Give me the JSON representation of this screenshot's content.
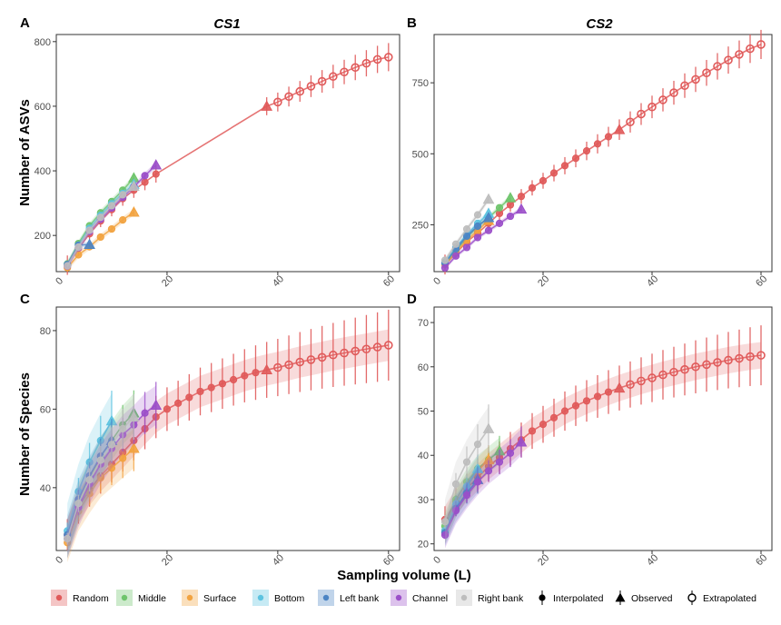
{
  "chart_data": {
    "type": "line",
    "x_axis_label": "Sampling volume (L)",
    "legend": {
      "items": [
        {
          "key": "random",
          "label": "Random",
          "color": "#e05a5a"
        },
        {
          "key": "middle",
          "label": "Middle",
          "color": "#6ec46b"
        },
        {
          "key": "surface",
          "label": "Surface",
          "color": "#f2a340"
        },
        {
          "key": "bottom",
          "label": "Bottom",
          "color": "#5cc3e0"
        },
        {
          "key": "leftbank",
          "label": "Left bank",
          "color": "#4b84c4"
        },
        {
          "key": "channel",
          "label": "Channel",
          "color": "#9b4fc9"
        },
        {
          "key": "rightbank",
          "label": "Right bank",
          "color": "#bdbdbd"
        }
      ],
      "methods": [
        {
          "key": "interpolated",
          "label": "Interpolated"
        },
        {
          "key": "observed",
          "label": "Observed"
        },
        {
          "key": "extrapolated",
          "label": "Extrapolated"
        }
      ]
    },
    "panels": [
      {
        "letter": "A",
        "title": "CS1",
        "ylabel": "Number of ASVs",
        "xlim": [
          0,
          62
        ],
        "ylim": [
          88,
          822
        ],
        "xticks": [
          20,
          40,
          60
        ],
        "yticks": [
          200,
          400,
          600,
          800
        ],
        "series": [
          {
            "key": "random",
            "interp_x": [
              2,
              4,
              6,
              8,
              10,
              12,
              14,
              16,
              18
            ],
            "interp_y": [
              108,
              160,
              205,
              245,
              280,
              314,
              340,
              365,
              390
            ],
            "obs_x": 38,
            "obs_y": 600,
            "extrap_x": [
              40,
              42,
              44,
              46,
              48,
              50,
              52,
              54,
              56,
              58,
              60
            ],
            "extrap_y": [
              613,
              630,
              646,
              662,
              677,
              692,
              706,
              720,
              733,
              745,
              752
            ],
            "err": 30,
            "ribbon": false,
            "shape_x": 18,
            "shape_y": 390,
            "full_x": [
              2,
              4,
              6,
              8,
              10,
              12,
              14,
              16,
              18,
              20,
              22,
              24,
              26,
              28,
              30,
              32,
              34,
              36
            ],
            "full_y": [
              108,
              160,
              205,
              245,
              280,
              314,
              340,
              365,
              390,
              412,
              436,
              460,
              483,
              505,
              525,
              545,
              565,
              583
            ],
            "full_err": 22
          },
          {
            "key": "middle",
            "interp_x": [
              2,
              4,
              6,
              8,
              10,
              12
            ],
            "interp_y": [
              112,
              175,
              230,
              270,
              305,
              340
            ],
            "obs_x": 14,
            "obs_y": 378,
            "err": 10,
            "ribbon": true
          },
          {
            "key": "surface",
            "interp_x": [
              2,
              4,
              6,
              8,
              10,
              12
            ],
            "interp_y": [
              100,
              140,
              165,
              195,
              220,
              248
            ],
            "obs_x": 14,
            "obs_y": 272,
            "err": 10,
            "ribbon": true
          },
          {
            "key": "bottom",
            "interp_x": [
              2,
              4,
              6,
              8,
              10,
              12
            ],
            "interp_y": [
              108,
              168,
              222,
              262,
              298,
              330
            ],
            "obs_x": 14,
            "obs_y": 358,
            "err": 10,
            "ribbon": true
          },
          {
            "key": "leftbank",
            "interp_x": [
              2,
              4
            ],
            "interp_y": [
              110,
              170
            ],
            "obs_x": 6,
            "obs_y": 172,
            "err": 8,
            "ribbon": true
          },
          {
            "key": "channel",
            "interp_x": [
              2,
              4,
              6,
              8,
              10,
              12,
              14,
              16
            ],
            "interp_y": [
              105,
              162,
              212,
              250,
              285,
              318,
              350,
              385
            ],
            "obs_x": 18,
            "obs_y": 418,
            "err": 10,
            "ribbon": true
          },
          {
            "key": "rightbank",
            "interp_x": [
              2,
              4,
              6,
              8,
              10,
              12
            ],
            "interp_y": [
              106,
              164,
              216,
              256,
              292,
              326
            ],
            "obs_x": 14,
            "obs_y": 352,
            "err": 10,
            "ribbon": true
          }
        ]
      },
      {
        "letter": "B",
        "title": "CS2",
        "ylabel": "",
        "xlim": [
          0,
          62
        ],
        "ylim": [
          85,
          920
        ],
        "xticks": [
          20,
          40,
          60
        ],
        "yticks": [
          250,
          500,
          750
        ],
        "series": [
          {
            "key": "random",
            "interp_x": [
              2,
              4,
              6,
              8,
              10,
              12,
              14,
              16,
              18,
              20,
              22,
              24,
              26,
              28,
              30,
              32
            ],
            "interp_y": [
              110,
              150,
              190,
              220,
              255,
              290,
              320,
              350,
              380,
              405,
              432,
              458,
              484,
              510,
              535,
              560
            ],
            "obs_x": 34,
            "obs_y": 585,
            "extrap_x": [
              36,
              38,
              40,
              42,
              44,
              46,
              48,
              50,
              52,
              54,
              56,
              58,
              60
            ],
            "extrap_y": [
              612,
              640,
              665,
              690,
              715,
              740,
              762,
              785,
              808,
              830,
              850,
              870,
              885
            ],
            "err": 35,
            "ribbon": false
          },
          {
            "key": "middle",
            "interp_x": [
              2,
              4,
              6,
              8,
              10,
              12
            ],
            "interp_y": [
              112,
              160,
              205,
              245,
              275,
              310
            ],
            "obs_x": 14,
            "obs_y": 345,
            "err": 10,
            "ribbon": true
          },
          {
            "key": "surface",
            "interp_x": [
              2,
              4,
              6,
              8
            ],
            "interp_y": [
              110,
              155,
              195,
              230
            ],
            "obs_x": 10,
            "obs_y": 265,
            "err": 10,
            "ribbon": true
          },
          {
            "key": "bottom",
            "interp_x": [
              2,
              4,
              6,
              8
            ],
            "interp_y": [
              118,
              170,
              215,
              255
            ],
            "obs_x": 10,
            "obs_y": 290,
            "err": 10,
            "ribbon": true
          },
          {
            "key": "leftbank",
            "interp_x": [
              2,
              4,
              6,
              8
            ],
            "interp_y": [
              115,
              165,
              210,
              245
            ],
            "obs_x": 10,
            "obs_y": 275,
            "err": 10,
            "ribbon": true
          },
          {
            "key": "channel",
            "interp_x": [
              2,
              4,
              6,
              8,
              10,
              12,
              14
            ],
            "interp_y": [
              98,
              140,
              170,
              205,
              230,
              255,
              280
            ],
            "obs_x": 16,
            "obs_y": 305,
            "err": 8,
            "ribbon": true
          },
          {
            "key": "rightbank",
            "interp_x": [
              2,
              4,
              6,
              8
            ],
            "interp_y": [
              125,
              182,
              235,
              285
            ],
            "obs_x": 10,
            "obs_y": 340,
            "err": 10,
            "ribbon": true
          }
        ]
      },
      {
        "letter": "C",
        "title": "",
        "ylabel": "Number of Species",
        "xlim": [
          0,
          62
        ],
        "ylim": [
          24,
          86
        ],
        "xticks": [
          20,
          40,
          60
        ],
        "yticks": [
          40,
          60,
          80
        ],
        "series": [
          {
            "key": "random",
            "interp_x": [
              2,
              4,
              6,
              8,
              10,
              12,
              14,
              16,
              18,
              20,
              22,
              24,
              26,
              28,
              30,
              32,
              34,
              36
            ],
            "interp_y": [
              28,
              35,
              39.5,
              43,
              46,
              49,
              52,
              55,
              58,
              60,
              61.5,
              63,
              64.5,
              65.5,
              66.5,
              67.5,
              68.5,
              69.3
            ],
            "obs_x": 38,
            "obs_y": 70,
            "extrap_x": [
              40,
              42,
              44,
              46,
              48,
              50,
              52,
              54,
              56,
              58,
              60
            ],
            "extrap_y": [
              70.6,
              71.3,
              72,
              72.6,
              73.2,
              73.8,
              74.3,
              74.8,
              75.3,
              75.8,
              76.3
            ],
            "err": 4,
            "errgrow": true,
            "ribbon": true
          },
          {
            "key": "middle",
            "interp_x": [
              2,
              4,
              6,
              8,
              10,
              12
            ],
            "interp_y": [
              27,
              36,
              42,
              48,
              52,
              56
            ],
            "obs_x": 14,
            "obs_y": 59,
            "err": 5,
            "ribbon": true
          },
          {
            "key": "surface",
            "interp_x": [
              2,
              4,
              6,
              8,
              10,
              12
            ],
            "interp_y": [
              26,
              34,
              38.5,
              42.5,
              45,
              47.5
            ],
            "obs_x": 14,
            "obs_y": 50,
            "err": 5,
            "ribbon": true
          },
          {
            "key": "bottom",
            "interp_x": [
              2,
              4,
              6,
              8
            ],
            "interp_y": [
              29,
              39,
              46.5,
              52
            ],
            "obs_x": 10,
            "obs_y": 57,
            "err": 7,
            "ribbon": true
          },
          {
            "key": "leftbank",
            "interp_x": [
              2,
              4,
              6,
              8
            ],
            "interp_y": [
              28,
              37,
              43,
              48
            ],
            "obs_x": 10,
            "obs_y": 52,
            "err": 5,
            "ribbon": true
          },
          {
            "key": "channel",
            "interp_x": [
              2,
              4,
              6,
              8,
              10,
              12,
              14,
              16
            ],
            "interp_y": [
              27,
              35,
              41,
              46,
              50,
              53.5,
              56,
              59
            ],
            "obs_x": 18,
            "obs_y": 61,
            "err": 5,
            "ribbon": true
          },
          {
            "key": "rightbank",
            "interp_x": [
              2,
              4,
              6,
              8,
              10,
              12
            ],
            "interp_y": [
              27,
              36,
              42,
              47,
              51,
              55
            ],
            "obs_x": 14,
            "obs_y": 58,
            "err": 5,
            "ribbon": true
          }
        ]
      },
      {
        "letter": "D",
        "title": "",
        "ylabel": "",
        "xlim": [
          0,
          62
        ],
        "ylim": [
          18.5,
          73.5
        ],
        "xticks": [
          20,
          40,
          60
        ],
        "yticks": [
          20,
          30,
          40,
          50,
          60,
          70
        ],
        "series": [
          {
            "key": "random",
            "interp_x": [
              2,
              4,
              6,
              8,
              10,
              12,
              14,
              16,
              18,
              20,
              22,
              24,
              26,
              28,
              30,
              32
            ],
            "interp_y": [
              25.5,
              29.5,
              32.5,
              35,
              37.5,
              39.5,
              41.5,
              43.5,
              45.5,
              47,
              48.5,
              50,
              51.2,
              52.3,
              53.3,
              54.3
            ],
            "obs_x": 34,
            "obs_y": 55.2,
            "extrap_x": [
              36,
              38,
              40,
              42,
              44,
              46,
              48,
              50,
              52,
              54,
              56,
              58,
              60
            ],
            "extrap_y": [
              56,
              56.8,
              57.5,
              58.2,
              58.8,
              59.4,
              60,
              60.5,
              61,
              61.5,
              61.9,
              62.3,
              62.6
            ],
            "err": 3,
            "errgrow": true,
            "ribbon": true
          },
          {
            "key": "middle",
            "interp_x": [
              2,
              4,
              6,
              8,
              10
            ],
            "interp_y": [
              24,
              30,
              34,
              37,
              39
            ],
            "obs_x": 12,
            "obs_y": 41,
            "err": 3,
            "ribbon": true
          },
          {
            "key": "surface",
            "interp_x": [
              2,
              4,
              6,
              8
            ],
            "interp_y": [
              23,
              29,
              33,
              36.5
            ],
            "obs_x": 10,
            "obs_y": 39,
            "err": 3,
            "ribbon": true
          },
          {
            "key": "bottom",
            "interp_x": [
              2,
              4,
              6
            ],
            "interp_y": [
              23,
              29,
              33
            ],
            "obs_x": 8,
            "obs_y": 37,
            "err": 3,
            "ribbon": true
          },
          {
            "key": "leftbank",
            "interp_x": [
              2,
              4,
              6
            ],
            "interp_y": [
              22.5,
              28,
              31.5
            ],
            "obs_x": 8,
            "obs_y": 34.5,
            "err": 3,
            "ribbon": true
          },
          {
            "key": "channel",
            "interp_x": [
              2,
              4,
              6,
              8,
              10,
              12,
              14
            ],
            "interp_y": [
              22,
              27.5,
              31,
              34,
              36.5,
              38.5,
              40.5
            ],
            "obs_x": 16,
            "obs_y": 43,
            "err": 3,
            "ribbon": true
          },
          {
            "key": "rightbank",
            "interp_x": [
              2,
              4,
              6,
              8
            ],
            "interp_y": [
              25,
              33.5,
              38.5,
              42.5
            ],
            "obs_x": 10,
            "obs_y": 46,
            "err": 5,
            "ribbon": true
          }
        ]
      }
    ]
  }
}
